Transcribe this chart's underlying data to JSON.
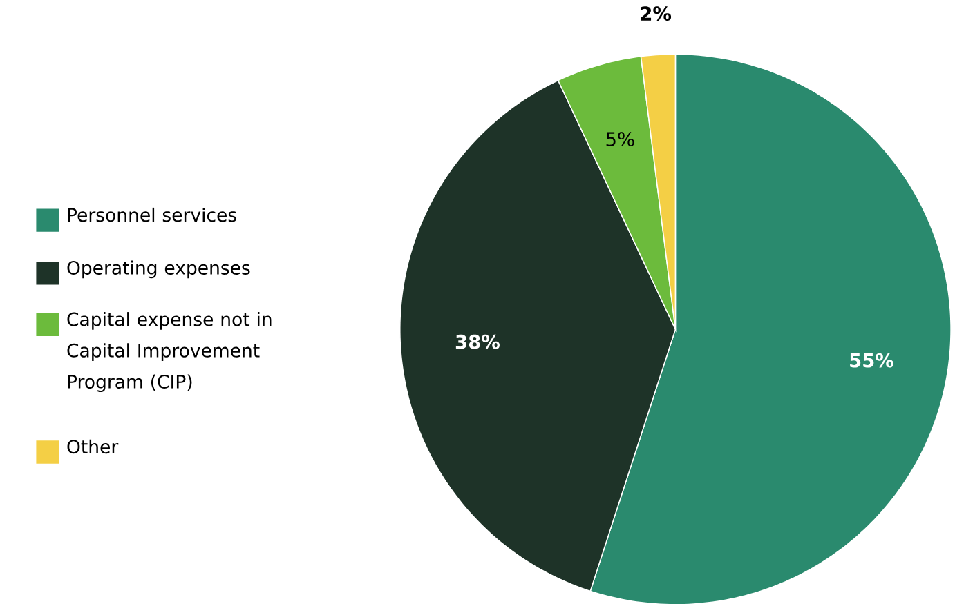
{
  "chart_data": {
    "type": "pie",
    "categories": [
      "Personnel services",
      "Operating expenses",
      "Capital expense not in Capital Improvement Program (CIP)",
      "Other"
    ],
    "values": [
      55,
      38,
      5,
      2
    ],
    "colors": [
      "#2a8a6e",
      "#1e3328",
      "#6cbb3c",
      "#f4cf45"
    ],
    "value_labels": [
      "55%",
      "38%",
      "5%",
      "2%"
    ],
    "legend": "left"
  }
}
